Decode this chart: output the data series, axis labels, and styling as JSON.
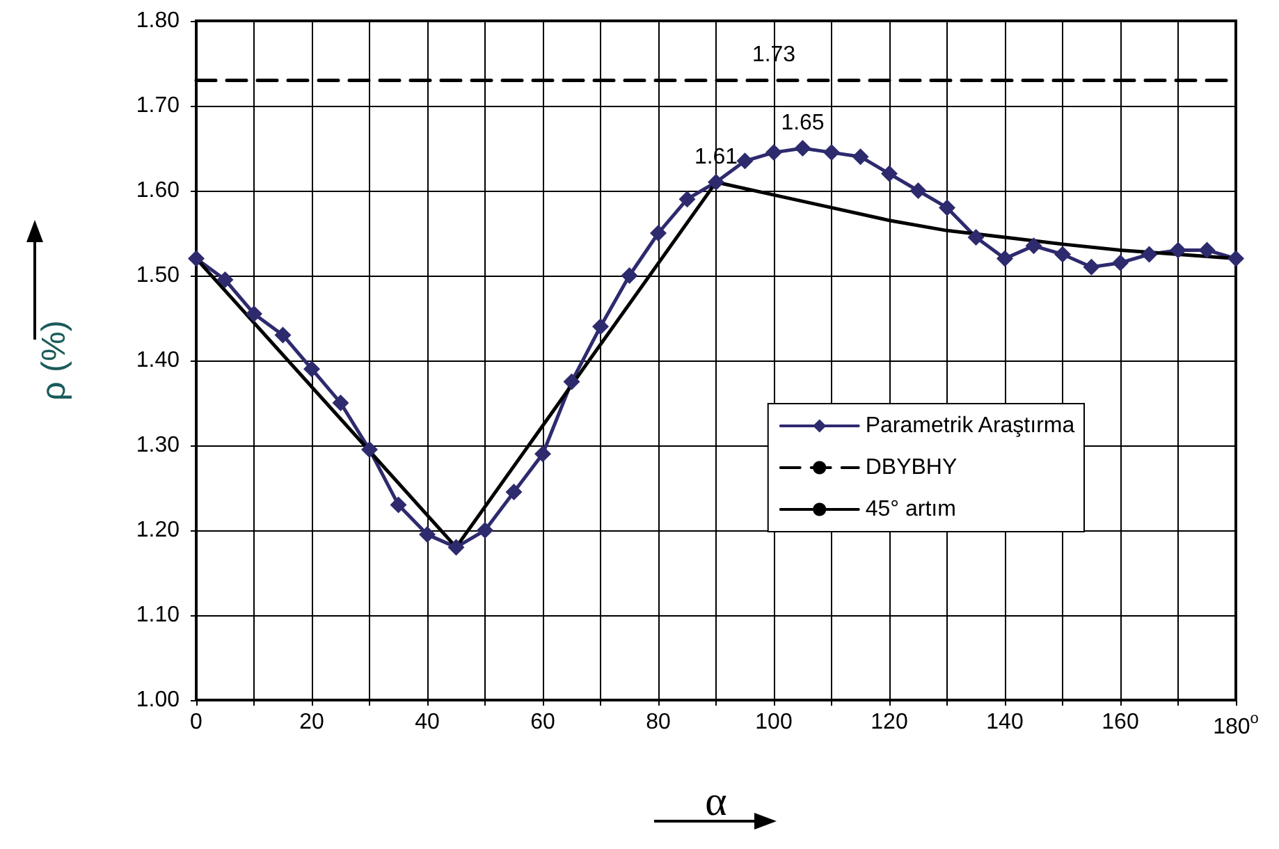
{
  "chart_data": {
    "type": "line",
    "xlabel": "α",
    "ylabel": "ρ (%)",
    "xlim": [
      0,
      180
    ],
    "xticks": [
      0,
      {
        "value": 10,
        "label": null
      },
      20,
      {
        "value": 30,
        "label": null
      },
      40,
      {
        "value": 50,
        "label": null
      },
      60,
      {
        "value": 70,
        "label": null
      },
      80,
      {
        "value": 90,
        "label": null
      },
      100,
      {
        "value": 110,
        "label": null
      },
      120,
      {
        "value": 130,
        "label": null
      },
      140,
      {
        "value": 150,
        "label": null
      },
      160,
      {
        "value": 170,
        "label": null
      },
      {
        "value": 180,
        "label": "180$^{o}$"
      }
    ],
    "ylim": [
      1.0,
      1.8
    ],
    "yticks": [
      {
        "value": 1.0,
        "label": "1.00"
      },
      {
        "value": 1.1,
        "label": "1.10"
      },
      {
        "value": 1.2,
        "label": "1.20"
      },
      {
        "value": 1.3,
        "label": "1.30"
      },
      {
        "value": 1.4,
        "label": "1.40"
      },
      {
        "value": 1.5,
        "label": "1.50"
      },
      {
        "value": 1.6,
        "label": "1.60"
      },
      {
        "value": 1.7,
        "label": "1.70"
      },
      {
        "value": 1.8,
        "label": "1.80"
      }
    ],
    "grid": true,
    "legend": "right",
    "series": [
      {
        "name": "Parametrik Araştırma",
        "color": "#2e2a6e",
        "marker": "diamond",
        "line_style": "solid",
        "x": [
          0,
          5,
          10,
          15,
          20,
          25,
          30,
          35,
          40,
          45,
          50,
          55,
          60,
          65,
          70,
          75,
          80,
          85,
          90,
          95,
          100,
          105,
          110,
          115,
          120,
          125,
          130,
          135,
          140,
          145,
          150,
          155,
          160,
          165,
          170,
          175,
          180
        ],
        "values": [
          1.52,
          1.495,
          1.455,
          1.43,
          1.39,
          1.35,
          1.295,
          1.23,
          1.195,
          1.18,
          1.2,
          1.245,
          1.29,
          1.375,
          1.44,
          1.5,
          1.55,
          1.59,
          1.61,
          1.635,
          1.645,
          1.65,
          1.645,
          1.64,
          1.62,
          1.6,
          1.58,
          1.545,
          1.52,
          1.535,
          1.525,
          1.51,
          1.515,
          1.525,
          1.53,
          1.53,
          1.52
        ]
      },
      {
        "name": "DBYBHY",
        "color": "#000000",
        "marker": "none",
        "line_style": "dashed",
        "x": [
          0,
          180
        ],
        "values": [
          1.73,
          1.73
        ]
      },
      {
        "name": "45° artım",
        "color": "#000000",
        "marker": "none",
        "line_style": "solid",
        "x": [
          0,
          45,
          90,
          100,
          110,
          120,
          130,
          140,
          150,
          160,
          170,
          180
        ],
        "values": [
          1.52,
          1.18,
          1.61,
          1.595,
          1.58,
          1.565,
          1.553,
          1.545,
          1.537,
          1.53,
          1.525,
          1.52
        ]
      }
    ],
    "annotations": [
      {
        "text": "1.73",
        "x": 100,
        "y": 1.73
      },
      {
        "text": "1.61",
        "x": 90,
        "y": 1.61
      },
      {
        "text": "1.65",
        "x": 105,
        "y": 1.65
      }
    ]
  }
}
